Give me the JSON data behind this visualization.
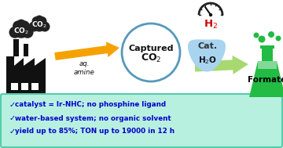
{
  "bg_color": "#ffffff",
  "bullet_box_color": "#b8f0e0",
  "bullet_box_edge_color": "#55ccaa",
  "bullet_text_color": "#0000cc",
  "bullets": [
    "catalyst = Ir-NHC; no phosphine ligand",
    "water-based system; no organic solvent",
    "yield up to 85%; TON up to 19000 in 12 h"
  ],
  "orange_arrow_color": "#f5a200",
  "green_arrow_color": "#a8d870",
  "cyan_arrow_color": "#55ddbb",
  "formate_flask_color": "#22bb44",
  "formate_bubble_color": "#22bb44",
  "h2_text_color": "#cc0000",
  "speedometer_color": "#222222",
  "water_drop_color": "#a8d4f0",
  "circle_edge_color": "#5599bb",
  "cloud_color": "#222222",
  "factory_color": "#111111"
}
